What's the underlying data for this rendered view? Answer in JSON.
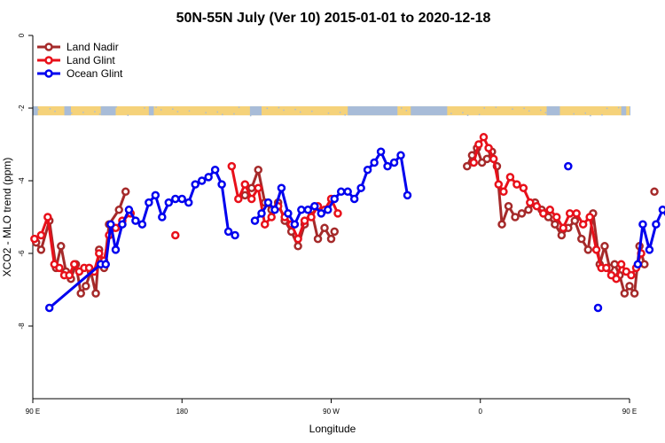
{
  "chart_data": {
    "type": "line",
    "title": "50N-55N July (Ver 10)   2015-01-01 to 2020-12-18",
    "xlabel": "Longitude",
    "ylabel": "XCO2 - MLO trend (ppm)",
    "xlim": [
      90,
      450
    ],
    "ylim": [
      -10,
      0
    ],
    "x_axis_note": "x values are longitude in degrees east, continued past 360 so the axis can run from 90 E across 180 and 0 back to 180",
    "x_ticks": [
      {
        "value": 90,
        "label": "90 E"
      },
      {
        "value": 180,
        "label": "180"
      },
      {
        "value": 270,
        "label": "90 W"
      },
      {
        "value": 360,
        "label": "0"
      },
      {
        "value": 450,
        "label": "90 E"
      },
      {
        "value": 540,
        "label": "180"
      }
    ],
    "y_ticks": [
      0,
      -2,
      -4,
      -6,
      -8
    ],
    "grid": false,
    "legend_position": "top-left",
    "land_band": {
      "y_top": -1.95,
      "y_bottom": -2.2,
      "land_color": "#f5d27a",
      "ocean_color": "#a8bcd8"
    },
    "series": [
      {
        "name": "Land Nadir",
        "color": "#a52a2a",
        "segments": [
          [
            [
              92,
              -5.7
            ],
            [
              95,
              -5.9
            ],
            [
              100,
              -5.1
            ],
            [
              104,
              -6.4
            ],
            [
              107,
              -5.8
            ],
            [
              110,
              -6.5
            ],
            [
              113,
              -6.7
            ],
            [
              116,
              -6.3
            ],
            [
              119,
              -7.1
            ],
            [
              122,
              -6.9
            ],
            [
              125,
              -6.5
            ],
            [
              128,
              -7.1
            ],
            [
              130,
              -5.9
            ],
            [
              133,
              -6.4
            ],
            [
              136,
              -5.2
            ],
            [
              142,
              -4.8
            ],
            [
              146,
              -4.3
            ]
          ],
          [
            [
              218,
              -4.4
            ],
            [
              222,
              -4.2
            ],
            [
              226,
              -3.7
            ],
            [
              230,
              -4.6
            ],
            [
              234,
              -4.8
            ],
            [
              238,
              -4.6
            ],
            [
              242,
              -5.1
            ],
            [
              246,
              -5.4
            ],
            [
              250,
              -5.8
            ],
            [
              254,
              -5.2
            ],
            [
              258,
              -4.8
            ],
            [
              262,
              -5.6
            ],
            [
              266,
              -5.3
            ],
            [
              270,
              -5.6
            ],
            [
              272,
              -5.4
            ]
          ],
          [
            [
              352,
              -3.6
            ],
            [
              355,
              -3.3
            ],
            [
              358,
              -3.1
            ],
            [
              361,
              -3.5
            ],
            [
              364,
              -3.4
            ],
            [
              367,
              -3.2
            ],
            [
              370,
              -3.6
            ],
            [
              373,
              -5.2
            ],
            [
              377,
              -4.7
            ],
            [
              381,
              -5.0
            ],
            [
              385,
              -4.9
            ],
            [
              389,
              -4.8
            ],
            [
              393,
              -4.6
            ],
            [
              397,
              -4.8
            ],
            [
              401,
              -5.0
            ],
            [
              405,
              -5.2
            ],
            [
              409,
              -5.5
            ],
            [
              413,
              -5.3
            ],
            [
              417,
              -5.1
            ],
            [
              421,
              -5.6
            ],
            [
              425,
              -5.9
            ],
            [
              428,
              -4.9
            ],
            [
              432,
              -6.3
            ],
            [
              435,
              -5.8
            ],
            [
              438,
              -6.4
            ],
            [
              441,
              -6.3
            ],
            [
              444,
              -6.6
            ],
            [
              447,
              -7.1
            ],
            [
              450,
              -6.9
            ],
            [
              453,
              -7.1
            ],
            [
              456,
              -5.8
            ],
            [
              459,
              -6.3
            ]
          ],
          [
            [
              465,
              -4.3
            ]
          ]
        ]
      },
      {
        "name": "Land Glint",
        "color": "#e8101a",
        "segments": [
          [
            [
              91,
              -5.6
            ],
            [
              95,
              -5.5
            ],
            [
              99,
              -5.0
            ],
            [
              103,
              -6.3
            ],
            [
              106,
              -6.4
            ],
            [
              109,
              -6.6
            ],
            [
              112,
              -6.6
            ],
            [
              115,
              -6.3
            ],
            [
              118,
              -6.5
            ],
            [
              121,
              -6.4
            ],
            [
              124,
              -6.4
            ],
            [
              127,
              -6.5
            ],
            [
              130,
              -6.0
            ],
            [
              133,
              -6.2
            ],
            [
              136,
              -5.5
            ],
            [
              140,
              -5.3
            ],
            [
              144,
              -5.1
            ],
            [
              149,
              -4.9
            ]
          ],
          [
            [
              176,
              -5.5
            ]
          ],
          [
            [
              210,
              -3.6
            ],
            [
              214,
              -4.5
            ],
            [
              218,
              -4.1
            ],
            [
              222,
              -4.5
            ],
            [
              226,
              -4.2
            ],
            [
              230,
              -5.2
            ],
            [
              234,
              -5.0
            ],
            [
              238,
              -4.7
            ],
            [
              242,
              -5.0
            ],
            [
              246,
              -5.2
            ],
            [
              250,
              -5.6
            ],
            [
              254,
              -5.1
            ],
            [
              258,
              -5.0
            ],
            [
              262,
              -4.7
            ],
            [
              266,
              -4.8
            ],
            [
              270,
              -4.5
            ],
            [
              274,
              -4.9
            ]
          ],
          [
            [
              356,
              -3.5
            ],
            [
              359,
              -3.0
            ],
            [
              362,
              -2.8
            ],
            [
              365,
              -3.1
            ],
            [
              368,
              -3.4
            ],
            [
              371,
              -4.1
            ],
            [
              374,
              -4.3
            ],
            [
              378,
              -3.9
            ],
            [
              382,
              -4.1
            ],
            [
              386,
              -4.2
            ],
            [
              390,
              -4.6
            ],
            [
              394,
              -4.7
            ],
            [
              398,
              -4.9
            ],
            [
              402,
              -4.8
            ],
            [
              406,
              -5.0
            ],
            [
              410,
              -5.3
            ],
            [
              414,
              -4.9
            ],
            [
              418,
              -4.9
            ],
            [
              422,
              -5.2
            ],
            [
              426,
              -5.0
            ],
            [
              430,
              -5.9
            ],
            [
              433,
              -6.4
            ],
            [
              436,
              -6.4
            ],
            [
              439,
              -6.6
            ],
            [
              442,
              -6.7
            ],
            [
              445,
              -6.3
            ],
            [
              448,
              -6.5
            ],
            [
              451,
              -6.6
            ],
            [
              454,
              -6.4
            ],
            [
              457,
              -6.0
            ]
          ]
        ]
      },
      {
        "name": "Ocean Glint",
        "color": "#0000ee",
        "segments": [
          [
            [
              100,
              -7.5
            ],
            [
              131,
              -6.3
            ],
            [
              134,
              -6.3
            ],
            [
              137,
              -5.2
            ],
            [
              140,
              -5.9
            ],
            [
              144,
              -5.2
            ],
            [
              148,
              -4.8
            ],
            [
              152,
              -5.1
            ],
            [
              156,
              -5.2
            ],
            [
              160,
              -4.6
            ],
            [
              164,
              -4.4
            ],
            [
              168,
              -5.0
            ],
            [
              172,
              -4.6
            ],
            [
              176,
              -4.5
            ],
            [
              180,
              -4.5
            ],
            [
              184,
              -4.6
            ],
            [
              188,
              -4.1
            ],
            [
              192,
              -4.0
            ],
            [
              196,
              -3.9
            ],
            [
              200,
              -3.7
            ],
            [
              204,
              -4.1
            ],
            [
              208,
              -5.4
            ],
            [
              212,
              -5.5
            ]
          ],
          [
            [
              224,
              -5.1
            ],
            [
              228,
              -4.9
            ],
            [
              232,
              -4.6
            ],
            [
              236,
              -4.8
            ],
            [
              240,
              -4.2
            ],
            [
              244,
              -4.9
            ],
            [
              248,
              -5.2
            ],
            [
              252,
              -4.8
            ],
            [
              256,
              -4.8
            ],
            [
              260,
              -4.7
            ],
            [
              264,
              -4.9
            ],
            [
              268,
              -4.8
            ],
            [
              272,
              -4.5
            ],
            [
              276,
              -4.3
            ],
            [
              280,
              -4.3
            ],
            [
              284,
              -4.5
            ],
            [
              288,
              -4.2
            ],
            [
              292,
              -3.7
            ],
            [
              296,
              -3.5
            ],
            [
              300,
              -3.2
            ],
            [
              304,
              -3.6
            ],
            [
              308,
              -3.5
            ],
            [
              312,
              -3.3
            ],
            [
              316,
              -4.4
            ]
          ],
          [
            [
              413,
              -3.6
            ]
          ],
          [
            [
              431,
              -7.5
            ]
          ],
          [
            [
              455,
              -6.3
            ],
            [
              458,
              -5.2
            ],
            [
              462,
              -5.9
            ],
            [
              466,
              -5.2
            ],
            [
              470,
              -4.8
            ],
            [
              474,
              -5.1
            ],
            [
              478,
              -5.2
            ],
            [
              482,
              -4.5
            ]
          ]
        ]
      }
    ]
  }
}
